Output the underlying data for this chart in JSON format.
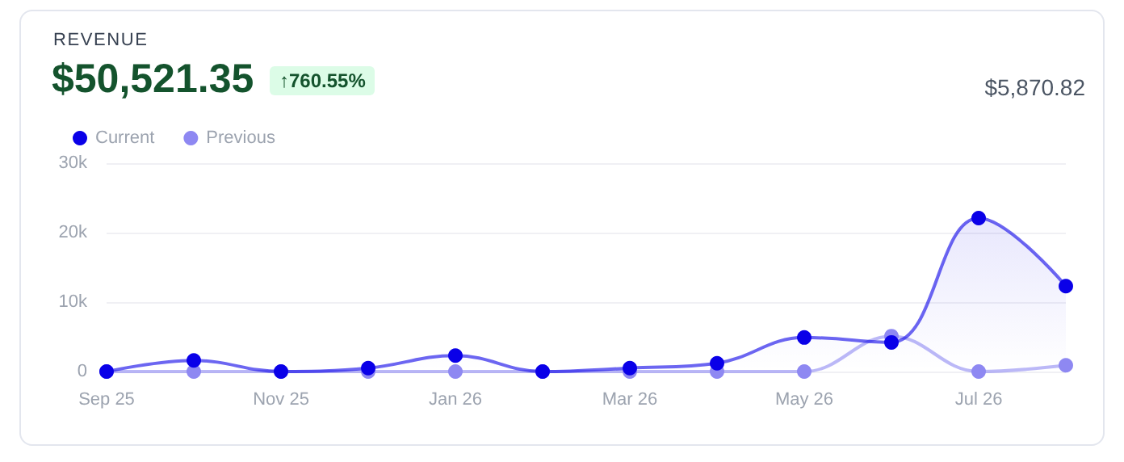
{
  "chart_data": {
    "type": "line",
    "title": "REVENUE",
    "subtitle": "$50,521.35",
    "annotations": [
      "↑760.55%",
      "$5,870.82"
    ],
    "categories": [
      "Sep 25",
      null,
      "Nov 25",
      null,
      "Jan 26",
      null,
      "Mar 26",
      null,
      "May 26",
      null,
      "Jul 26",
      null
    ],
    "series": [
      {
        "name": "Current",
        "type": "area",
        "color": "#0a00e8",
        "values": [
          0,
          1600,
          0,
          500,
          2300,
          0,
          500,
          1200,
          4900,
          4200,
          22100,
          12300
        ]
      },
      {
        "name": "Previous",
        "color": "#8e88f2",
        "values": [
          0,
          0,
          0,
          0,
          0,
          0,
          0,
          0,
          0,
          5100,
          0,
          900
        ]
      }
    ],
    "ylim": [
      0,
      30000
    ],
    "yticks": [
      0,
      {
        "value": 10000,
        "label": "10k"
      },
      {
        "value": 20000,
        "label": "20k"
      },
      {
        "value": 30000,
        "label": "30k"
      }
    ],
    "grid": "y",
    "legend": "top left",
    "marker": "circle",
    "line_style": "solid"
  }
}
